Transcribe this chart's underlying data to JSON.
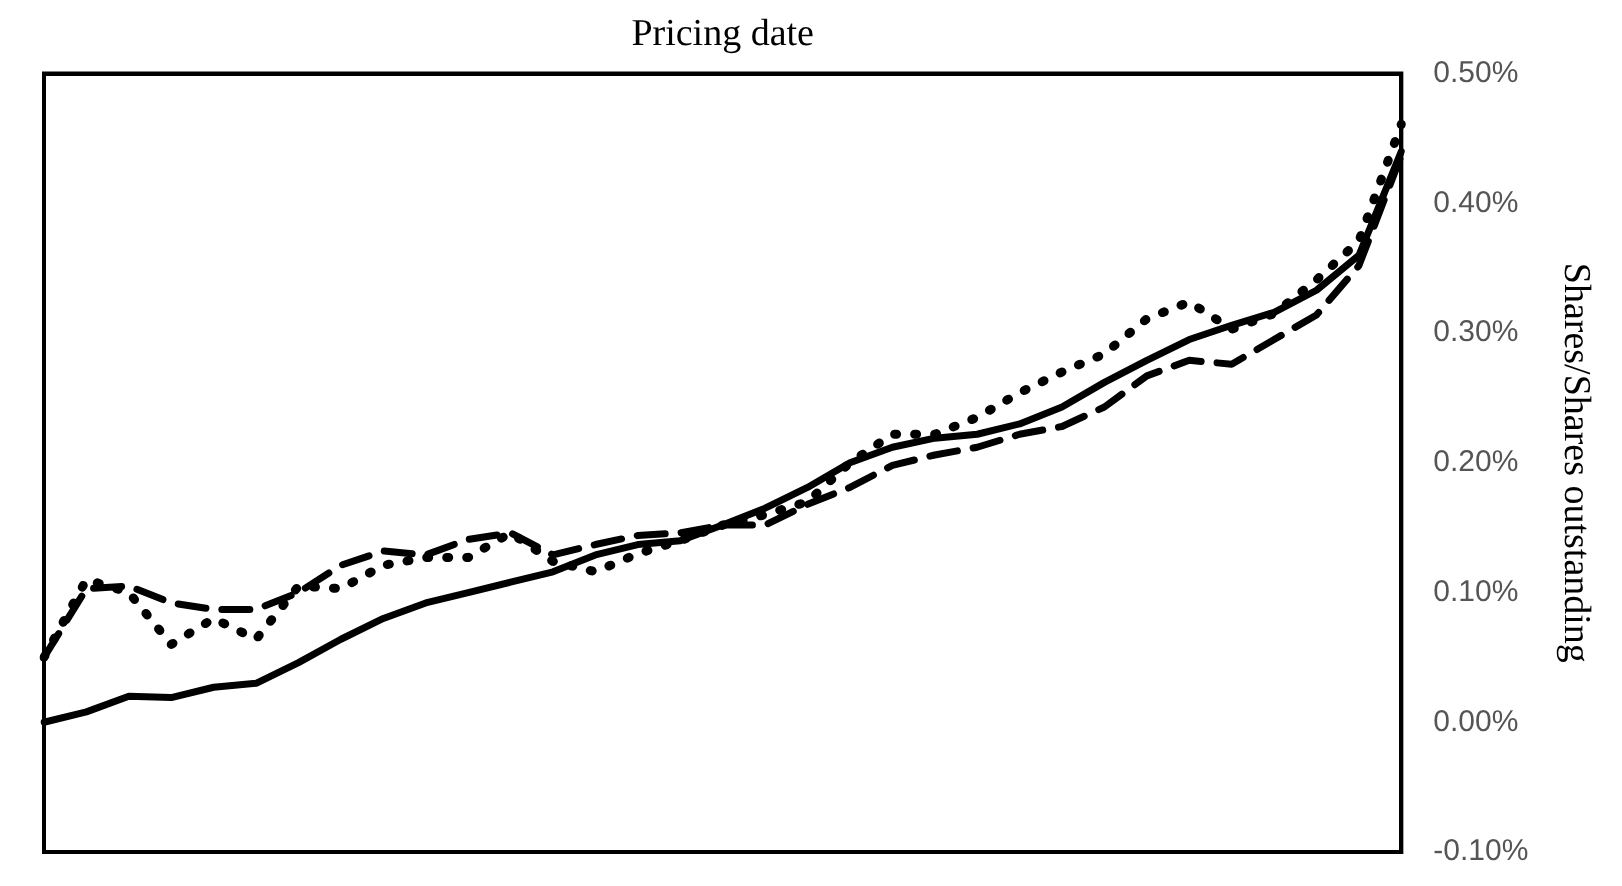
{
  "chart_data": {
    "type": "line",
    "xlabel": "Pricing date",
    "ylabel": "Shares/Shares outstanding",
    "tick_labels": "y",
    "grid": false,
    "legend": false,
    "marker": "none",
    "categories": [
      null,
      null,
      null,
      null,
      null,
      null,
      null,
      null,
      null,
      null,
      null,
      null,
      null,
      null,
      null,
      null,
      null,
      null,
      null,
      null,
      null,
      null,
      null,
      null,
      null,
      null,
      null,
      null,
      null,
      null,
      null,
      null,
      null
    ],
    "ylim": [
      -0.1,
      0.5
    ],
    "yticks": [
      {
        "value": -0.1,
        "label": "-0.10%"
      },
      {
        "value": 0,
        "label": "0.00%"
      },
      {
        "value": 0.1,
        "label": "0.10%"
      },
      {
        "value": 0.2,
        "label": "0.20%"
      },
      {
        "value": 0.3,
        "label": "0.30%"
      },
      {
        "value": 0.4,
        "label": "0.40%"
      },
      {
        "value": 0.5,
        "label": "0.50%"
      }
    ],
    "series": [
      {
        "color": "#000000",
        "line_style": "solid",
        "values": [
          0.0,
          0.008,
          0.02,
          0.019,
          0.027,
          0.03,
          0.046,
          0.064,
          0.08,
          0.092,
          0.1,
          0.108,
          0.116,
          0.129,
          0.137,
          0.14,
          0.152,
          0.165,
          0.181,
          0.2,
          0.212,
          0.219,
          0.222,
          0.23,
          0.243,
          0.262,
          0.279,
          0.295,
          0.306,
          0.316,
          0.333,
          0.36,
          0.44
        ]
      },
      {
        "color": "#000000",
        "line_style": "dashed",
        "values": [
          0.05,
          0.103,
          0.105,
          0.092,
          0.087,
          0.087,
          0.1,
          0.121,
          0.132,
          0.129,
          0.141,
          0.146,
          0.129,
          0.137,
          0.144,
          0.146,
          0.152,
          0.152,
          0.168,
          0.181,
          0.198,
          0.206,
          0.212,
          0.222,
          0.228,
          0.243,
          0.267,
          0.279,
          0.276,
          0.295,
          0.314,
          0.352,
          0.437
        ]
      },
      {
        "color": "#000000",
        "line_style": "dotted",
        "values": [
          0.05,
          0.11,
          0.1,
          0.06,
          0.08,
          0.064,
          0.105,
          0.103,
          0.121,
          0.127,
          0.127,
          0.146,
          0.124,
          0.116,
          0.13,
          0.14,
          0.152,
          0.16,
          0.17,
          0.2,
          0.222,
          0.222,
          0.235,
          0.254,
          0.27,
          0.284,
          0.311,
          0.324,
          0.303,
          0.315,
          0.341,
          0.371,
          0.461
        ]
      }
    ]
  }
}
